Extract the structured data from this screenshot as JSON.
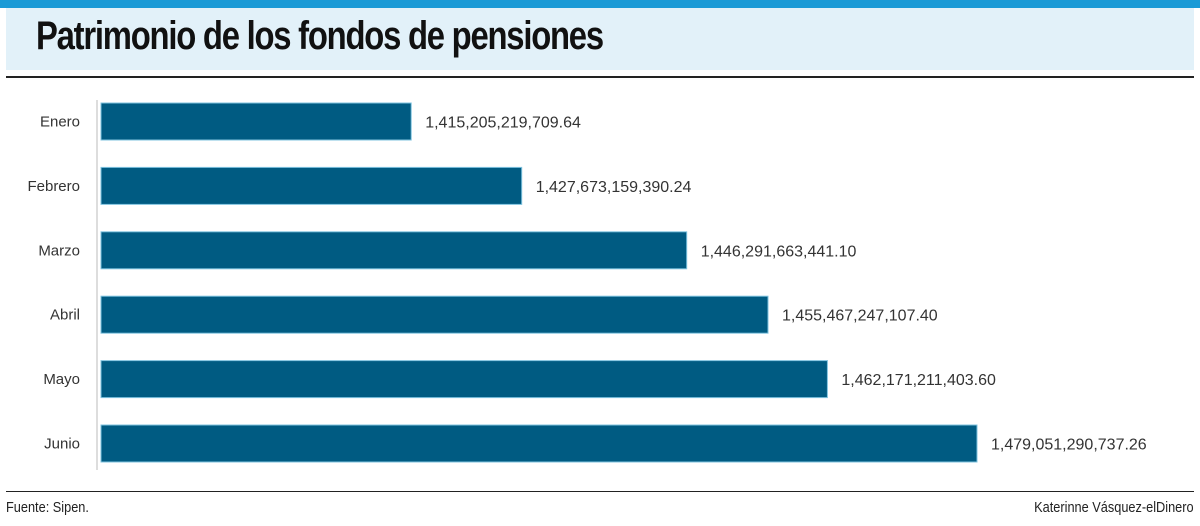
{
  "chart_data": {
    "type": "bar",
    "orientation": "horizontal",
    "title": "Patrimonio de los fondos de pensiones",
    "categories": [
      "Enero",
      "Febrero",
      "Marzo",
      "Abril",
      "Mayo",
      "Junio"
    ],
    "values": [
      1415205219709.64,
      1427673159390.24,
      1446291663441.1,
      1455467247107.4,
      1462171211403.6,
      1479051290737.26
    ],
    "labels": [
      "1,415,205,219,709.64",
      "1,427,673,159,390.24",
      "1,446,291,663,441.10",
      "1,455,467,247,107.40",
      "1,462,171,211,403.60",
      "1,479,051,290,737.26"
    ],
    "xlim": [
      1380200000000,
      1479051290737.26
    ],
    "xlabel": "",
    "ylabel": "",
    "grid": false,
    "bar_color": "#005b82"
  },
  "footer": {
    "source": "Fuente: Sipen.",
    "credit": "Katerinne Vásquez-elDinero"
  }
}
